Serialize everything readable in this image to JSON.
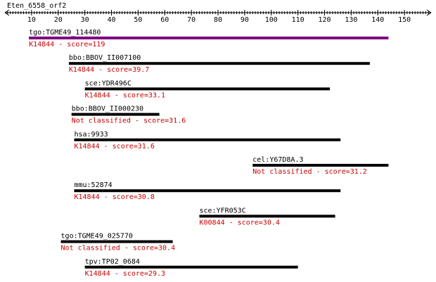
{
  "chart_data": {
    "type": "alignment",
    "title": "Eten_6558_orf2",
    "xlim": [
      0,
      160
    ],
    "xticks": [
      10,
      20,
      30,
      40,
      50,
      60,
      70,
      80,
      90,
      100,
      110,
      120,
      130,
      140,
      150
    ],
    "rows": [
      {
        "name": "tgo:TGME49_114480",
        "start": 9,
        "end": 144,
        "label": "K14844 - score=119",
        "color": "#800080"
      },
      {
        "name": "bbo:BBOV_II007100",
        "start": 24,
        "end": 137,
        "label": "K14844 - score=39.7",
        "color": "#000000"
      },
      {
        "name": "sce:YDR496C",
        "start": 30,
        "end": 122,
        "label": "K14844 - score=33.1",
        "color": "#000000"
      },
      {
        "name": "bbo:BBOV_II000230",
        "start": 25,
        "end": 58,
        "label": "Not classified - score=31.6",
        "color": "#000000"
      },
      {
        "name": "hsa:9933",
        "start": 26,
        "end": 126,
        "label": "K14844 - score=31.6",
        "color": "#000000"
      },
      {
        "name": "cel:Y67D8A.3",
        "start": 93,
        "end": 144,
        "label": "Not classified - score=31.2",
        "color": "#000000"
      },
      {
        "name": "mmu:52874",
        "start": 26,
        "end": 126,
        "label": "K14844 - score=30.8",
        "color": "#000000"
      },
      {
        "name": "sce:YFR053C",
        "start": 73,
        "end": 124,
        "label": "K00844 - score=30.4",
        "color": "#000000"
      },
      {
        "name": "tgo:TGME49_025770",
        "start": 21,
        "end": 63,
        "label": "Not classified - score=30.4",
        "color": "#000000"
      },
      {
        "name": "tpv:TP02_0684",
        "start": 30,
        "end": 110,
        "label": "K14844 - score=29.3",
        "color": "#000000"
      }
    ],
    "label_color": "#cc0000"
  }
}
